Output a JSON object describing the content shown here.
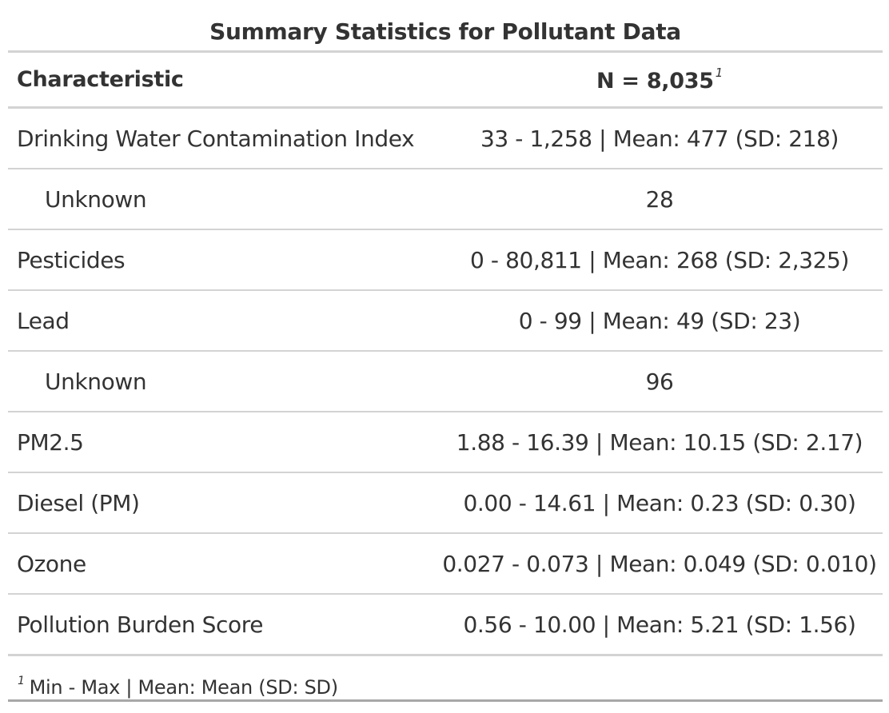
{
  "table": {
    "title": "Summary Statistics for Pollutant Data",
    "header": {
      "characteristic": "Characteristic",
      "n_label": "N = 8,035",
      "n_footnote_mark": "1"
    },
    "rows": [
      {
        "label": "Drinking Water Contamination Index",
        "value": "33 - 1,258 | Mean: 477 (SD: 218)",
        "indent": false
      },
      {
        "label": "Unknown",
        "value": "28",
        "indent": true
      },
      {
        "label": "Pesticides",
        "value": "0 - 80,811 | Mean: 268 (SD: 2,325)",
        "indent": false
      },
      {
        "label": "Lead",
        "value": "0 - 99 | Mean: 49 (SD: 23)",
        "indent": false
      },
      {
        "label": "Unknown",
        "value": "96",
        "indent": true
      },
      {
        "label": "PM2.5",
        "value": "1.88 - 16.39 | Mean: 10.15 (SD: 2.17)",
        "indent": false
      },
      {
        "label": "Diesel (PM)",
        "value": "0.00 - 14.61 | Mean: 0.23 (SD: 0.30)",
        "indent": false
      },
      {
        "label": "Ozone",
        "value": "0.027 - 0.073 | Mean: 0.049 (SD: 0.010)",
        "indent": false
      },
      {
        "label": "Pollution Burden Score",
        "value": "0.56 - 10.00 | Mean: 5.21 (SD: 1.56)",
        "indent": false
      }
    ],
    "footnote": {
      "mark": "1",
      "text": "Min - Max | Mean: Mean (SD: SD)"
    }
  }
}
